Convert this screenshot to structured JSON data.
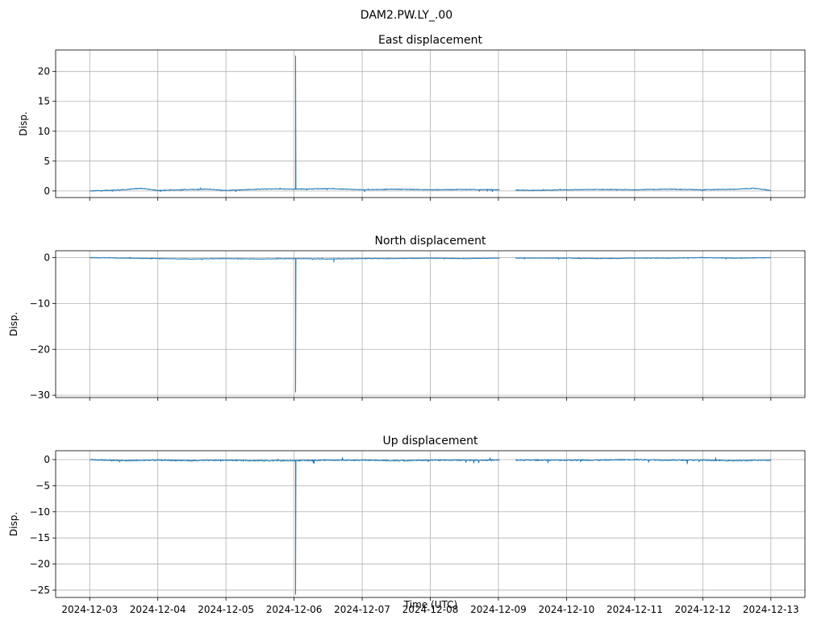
{
  "figure": {
    "suptitle": "DAM2.PW.LY_.00",
    "xlabel": "Time (UTC)",
    "x_tick_labels": [
      "2024-12-03",
      "2024-12-04",
      "2024-12-05",
      "2024-12-06",
      "2024-12-07",
      "2024-12-08",
      "2024-12-09",
      "2024-12-10",
      "2024-12-11",
      "2024-12-12",
      "2024-12-13"
    ]
  },
  "chart_data": [
    {
      "type": "line",
      "title": "East displacement",
      "xlabel": "",
      "ylabel": "Disp.",
      "xlim": [
        "2024-12-02T12:00",
        "2024-12-13T12:00"
      ],
      "ylim": [
        -1.1,
        23.6
      ],
      "yticks": [
        0,
        5,
        10,
        15,
        20
      ],
      "grid": true,
      "color": "#1f77b4",
      "series": [
        {
          "baseline": [
            [
              "2024-12-03T00:00",
              0.0
            ],
            [
              "2024-12-03T12:00",
              0.2
            ],
            [
              "2024-12-03T18:00",
              0.45
            ],
            [
              "2024-12-04T00:00",
              0.1
            ],
            [
              "2024-12-04T12:00",
              0.25
            ],
            [
              "2024-12-04T18:00",
              0.3
            ],
            [
              "2024-12-05T00:00",
              0.1
            ],
            [
              "2024-12-05T12:00",
              0.3
            ],
            [
              "2024-12-05T18:00",
              0.35
            ],
            [
              "2024-12-06T00:00",
              0.3
            ],
            [
              "2024-12-06T12:00",
              0.4
            ],
            [
              "2024-12-07T00:00",
              0.2
            ],
            [
              "2024-12-07T12:00",
              0.3
            ],
            [
              "2024-12-08T00:00",
              0.2
            ],
            [
              "2024-12-08T12:00",
              0.25
            ],
            [
              "2024-12-09T00:00",
              0.2
            ],
            [
              "2024-12-09T12:00",
              0.1
            ],
            [
              "2024-12-10T00:00",
              0.2
            ],
            [
              "2024-12-10T12:00",
              0.25
            ],
            [
              "2024-12-11T00:00",
              0.2
            ],
            [
              "2024-12-11T12:00",
              0.3
            ],
            [
              "2024-12-12T00:00",
              0.2
            ],
            [
              "2024-12-12T12:00",
              0.3
            ],
            [
              "2024-12-12T18:00",
              0.45
            ],
            [
              "2024-12-13T00:00",
              0.1
            ]
          ],
          "spike": {
            "time": "2024-12-06T00:30",
            "value": 22.6
          },
          "gap": [
            "2024-12-09T00:30",
            "2024-12-09T06:00"
          ]
        }
      ]
    },
    {
      "type": "line",
      "title": "North displacement",
      "xlabel": "",
      "ylabel": "Disp.",
      "xlim": [
        "2024-12-02T12:00",
        "2024-12-13T12:00"
      ],
      "ylim": [
        -30.5,
        1.5
      ],
      "yticks": [
        0,
        -10,
        -20,
        -30
      ],
      "grid": true,
      "color": "#1f77b4",
      "series": [
        {
          "baseline": [
            [
              "2024-12-03T00:00",
              0.0
            ],
            [
              "2024-12-03T12:00",
              -0.1
            ],
            [
              "2024-12-04T00:00",
              -0.2
            ],
            [
              "2024-12-04T12:00",
              -0.3
            ],
            [
              "2024-12-05T00:00",
              -0.2
            ],
            [
              "2024-12-05T12:00",
              -0.3
            ],
            [
              "2024-12-06T00:00",
              -0.2
            ],
            [
              "2024-12-06T12:00",
              -0.3
            ],
            [
              "2024-12-07T00:00",
              -0.2
            ],
            [
              "2024-12-07T12:00",
              -0.2
            ],
            [
              "2024-12-08T00:00",
              -0.1
            ],
            [
              "2024-12-08T12:00",
              -0.2
            ],
            [
              "2024-12-09T00:00",
              -0.1
            ],
            [
              "2024-12-10T00:00",
              -0.1
            ],
            [
              "2024-12-10T12:00",
              -0.2
            ],
            [
              "2024-12-11T00:00",
              -0.1
            ],
            [
              "2024-12-11T12:00",
              -0.1
            ],
            [
              "2024-12-12T00:00",
              0.0
            ],
            [
              "2024-12-12T12:00",
              -0.1
            ],
            [
              "2024-12-13T00:00",
              0.0
            ]
          ],
          "spike": {
            "time": "2024-12-06T00:30",
            "value": -29.3
          },
          "dip": {
            "time": "2024-12-06T14:00",
            "value": -1.0
          },
          "gap": [
            "2024-12-09T00:30",
            "2024-12-09T06:00"
          ]
        }
      ]
    },
    {
      "type": "line",
      "title": "Up displacement",
      "xlabel": "Time (UTC)",
      "ylabel": "Disp.",
      "xlim": [
        "2024-12-02T12:00",
        "2024-12-13T12:00"
      ],
      "ylim": [
        -26.4,
        1.7
      ],
      "yticks": [
        0,
        -5,
        -10,
        -15,
        -20,
        -25
      ],
      "grid": true,
      "color": "#1f77b4",
      "series": [
        {
          "baseline": [
            [
              "2024-12-03T00:00",
              0.0
            ],
            [
              "2024-12-03T12:00",
              -0.2
            ],
            [
              "2024-12-04T00:00",
              -0.1
            ],
            [
              "2024-12-04T12:00",
              -0.2
            ],
            [
              "2024-12-05T00:00",
              -0.1
            ],
            [
              "2024-12-05T12:00",
              -0.2
            ],
            [
              "2024-12-06T00:00",
              -0.2
            ],
            [
              "2024-12-06T12:00",
              -0.1
            ],
            [
              "2024-12-07T00:00",
              -0.1
            ],
            [
              "2024-12-07T12:00",
              -0.2
            ],
            [
              "2024-12-08T00:00",
              -0.1
            ],
            [
              "2024-12-08T12:00",
              -0.1
            ],
            [
              "2024-12-09T00:00",
              -0.1
            ],
            [
              "2024-12-10T00:00",
              -0.1
            ],
            [
              "2024-12-10T12:00",
              -0.1
            ],
            [
              "2024-12-11T00:00",
              0.0
            ],
            [
              "2024-12-11T12:00",
              -0.1
            ],
            [
              "2024-12-12T00:00",
              -0.1
            ],
            [
              "2024-12-12T12:00",
              -0.2
            ],
            [
              "2024-12-13T00:00",
              -0.1
            ]
          ],
          "spike": {
            "time": "2024-12-06T00:30",
            "value": -25.8
          },
          "gap": [
            "2024-12-09T00:30",
            "2024-12-09T06:00"
          ]
        }
      ]
    }
  ]
}
